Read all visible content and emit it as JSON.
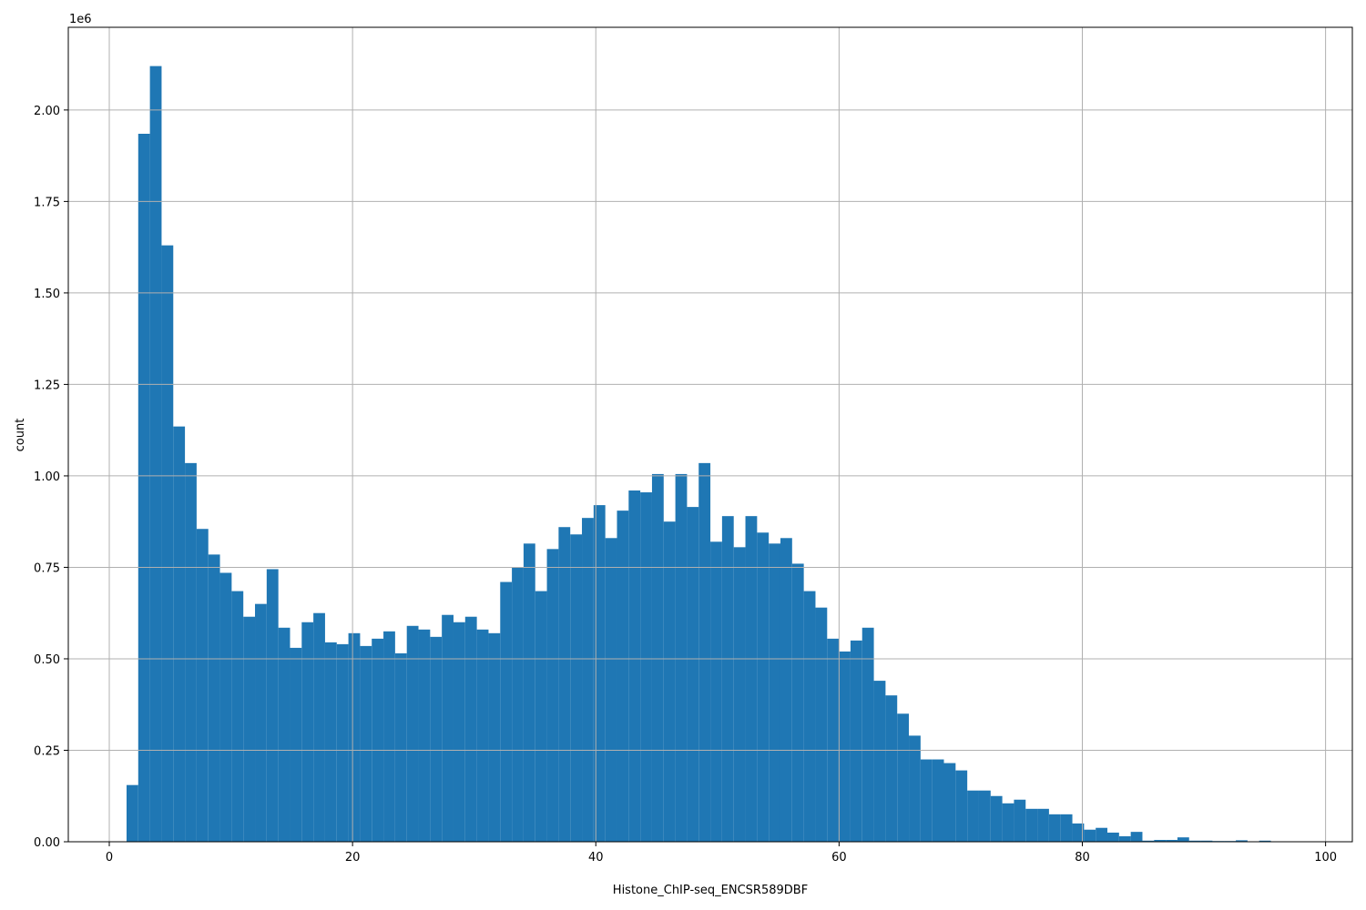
{
  "chart_data": {
    "type": "histogram",
    "xlabel": "Histone_ChIP-seq_ENCSR589DBF",
    "ylabel": "count",
    "y_offset_label": "1e6",
    "color": "#1f77b4",
    "grid": true,
    "bins": [
      1.42,
      2.38,
      3.34,
      4.3,
      5.26,
      6.22,
      7.18,
      8.14,
      9.1,
      10.06,
      11.02,
      11.98,
      12.94,
      13.9,
      14.86,
      15.82,
      16.78,
      17.74,
      18.7,
      19.66,
      20.62,
      21.58,
      22.54,
      23.5,
      24.46,
      25.42,
      26.38,
      27.34,
      28.3,
      29.26,
      30.22,
      31.18,
      32.14,
      33.1,
      34.06,
      35.02,
      35.98,
      36.94,
      37.9,
      38.86,
      39.82,
      40.78,
      41.74,
      42.7,
      43.66,
      44.62,
      45.58,
      46.54,
      47.5,
      48.46,
      49.42,
      50.38,
      51.34,
      52.3,
      53.26,
      54.22,
      55.18,
      56.14,
      57.1,
      58.06,
      59.02,
      59.98,
      60.94,
      61.9,
      62.86,
      63.82,
      64.78,
      65.74,
      66.7,
      67.66,
      68.62,
      69.58,
      70.54,
      71.5,
      72.46,
      73.42,
      74.38,
      75.34,
      76.3,
      77.26,
      78.22,
      79.18,
      80.14,
      81.1,
      82.06,
      83.02,
      83.98,
      84.94,
      85.9,
      86.86,
      87.82,
      88.78,
      89.74,
      90.7,
      91.66,
      92.62,
      93.58,
      94.54,
      95.5,
      96.46,
      97.42
    ],
    "values": [
      0.155,
      1.935,
      2.12,
      1.63,
      1.135,
      1.035,
      0.855,
      0.785,
      0.735,
      0.685,
      0.615,
      0.65,
      0.745,
      0.585,
      0.53,
      0.6,
      0.625,
      0.545,
      0.54,
      0.57,
      0.535,
      0.555,
      0.575,
      0.515,
      0.59,
      0.58,
      0.56,
      0.62,
      0.6,
      0.615,
      0.58,
      0.57,
      0.71,
      0.75,
      0.815,
      0.685,
      0.8,
      0.86,
      0.84,
      0.885,
      0.92,
      0.83,
      0.905,
      0.96,
      0.955,
      1.005,
      0.875,
      1.005,
      0.915,
      1.035,
      0.82,
      0.89,
      0.805,
      0.89,
      0.845,
      0.815,
      0.83,
      0.76,
      0.685,
      0.64,
      0.555,
      0.52,
      0.55,
      0.585,
      0.44,
      0.4,
      0.35,
      0.29,
      0.225,
      0.225,
      0.215,
      0.195,
      0.14,
      0.14,
      0.125,
      0.105,
      0.115,
      0.09,
      0.09,
      0.075,
      0.075,
      0.05,
      0.033,
      0.038,
      0.025,
      0.015,
      0.027,
      0.003,
      0.005,
      0.005,
      0.012,
      0.003,
      0.003,
      0.002,
      0.002,
      0.004,
      0.001,
      0.003,
      0.001,
      0.001
    ],
    "xlim": [
      -3.37,
      102.2
    ],
    "xticks": [
      0,
      20,
      40,
      60,
      80,
      100
    ],
    "ylim": [
      0,
      2.226
    ],
    "yticks": [
      {
        "value": 0,
        "label": "0.00"
      },
      {
        "value": 0.25,
        "label": "0.25"
      },
      {
        "value": 0.5,
        "label": "0.50"
      },
      {
        "value": 0.75,
        "label": "0.75"
      },
      {
        "value": 1,
        "label": "1.00"
      },
      {
        "value": 1.25,
        "label": "1.25"
      },
      {
        "value": 1.5,
        "label": "1.50"
      },
      {
        "value": 1.75,
        "label": "1.75"
      },
      {
        "value": 2,
        "label": "2.00"
      }
    ]
  }
}
